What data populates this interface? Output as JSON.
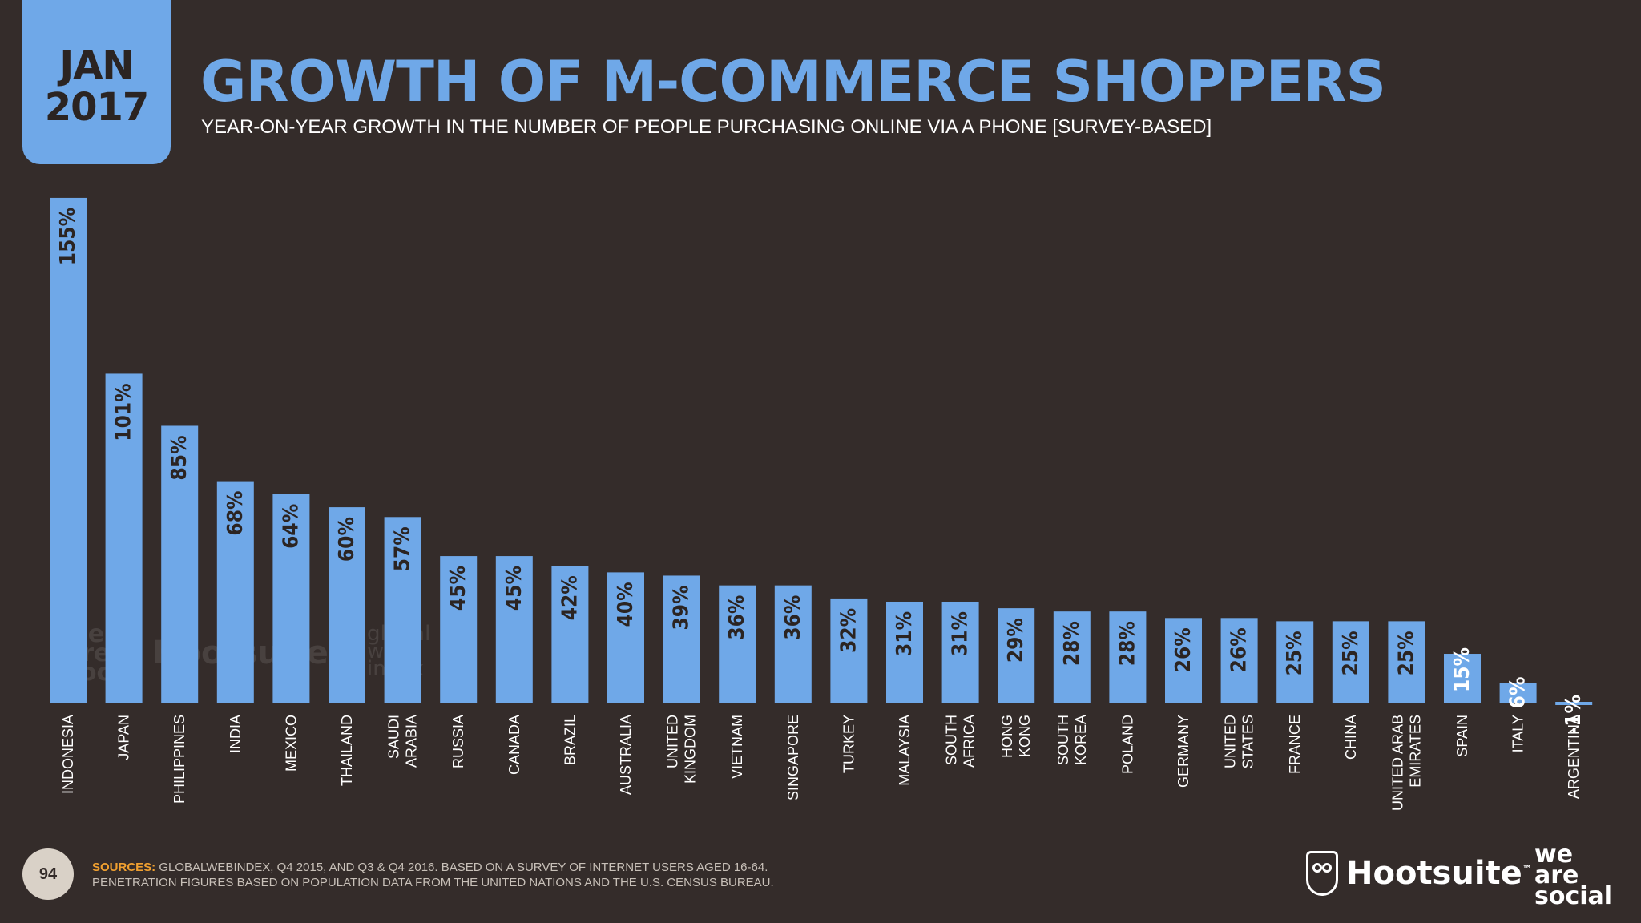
{
  "badge": {
    "month": "JAN",
    "year": "2017"
  },
  "header": {
    "title": "GROWTH OF M-COMMERCE SHOPPERS",
    "subtitle": "YEAR-ON-YEAR GROWTH IN THE NUMBER OF PEOPLE PURCHASING ONLINE VIA A PHONE [SURVEY-BASED]"
  },
  "chart_data": {
    "type": "bar",
    "categories": [
      [
        "INDONESIA"
      ],
      [
        "JAPAN"
      ],
      [
        "PHILIPPINES"
      ],
      [
        "INDIA"
      ],
      [
        "MEXICO"
      ],
      [
        "THAILAND"
      ],
      [
        "SAUDI",
        "ARABIA"
      ],
      [
        "RUSSIA"
      ],
      [
        "CANADA"
      ],
      [
        "BRAZIL"
      ],
      [
        "AUSTRALIA"
      ],
      [
        "UNITED",
        "KINGDOM"
      ],
      [
        "VIETNAM"
      ],
      [
        "SINGAPORE"
      ],
      [
        "TURKEY"
      ],
      [
        "MALAYSIA"
      ],
      [
        "SOUTH",
        "AFRICA"
      ],
      [
        "HONG",
        "KONG"
      ],
      [
        "SOUTH",
        "KOREA"
      ],
      [
        "POLAND"
      ],
      [
        "GERMANY"
      ],
      [
        "UNITED",
        "STATES"
      ],
      [
        "FRANCE"
      ],
      [
        "CHINA"
      ],
      [
        "UNITED ARAB",
        "EMIRATES"
      ],
      [
        "SPAIN"
      ],
      [
        "ITALY"
      ],
      [
        "ARGENTINA"
      ]
    ],
    "values": [
      155,
      101,
      85,
      68,
      64,
      60,
      57,
      45,
      45,
      42,
      40,
      39,
      36,
      36,
      32,
      31,
      31,
      29,
      28,
      28,
      26,
      26,
      25,
      25,
      25,
      15,
      6,
      -1
    ],
    "labels": [
      "155%",
      "101%",
      "85%",
      "68%",
      "64%",
      "60%",
      "57%",
      "45%",
      "45%",
      "42%",
      "40%",
      "39%",
      "36%",
      "36%",
      "32%",
      "31%",
      "31%",
      "29%",
      "28%",
      "28%",
      "26%",
      "26%",
      "25%",
      "25%",
      "25%",
      "15%",
      "6%",
      "-1%"
    ],
    "bar_color": "#6fa8e8",
    "label_color": "#2b2422",
    "outside_label_color": "#ffffff"
  },
  "watermarks": {
    "we_are_social": [
      "we",
      "are",
      "social"
    ],
    "hootsuite": "Hootsuite",
    "global_web_index": [
      "global",
      "web",
      "index"
    ]
  },
  "footer": {
    "page_number": "94",
    "sources_label": "SOURCES:",
    "sources_line1": " GLOBALWEBINDEX, Q4 2015, AND Q3 & Q4 2016. BASED ON A SURVEY OF INTERNET USERS AGED 16-64.",
    "sources_line2": "PENETRATION FIGURES BASED ON POPULATION DATA FROM THE UNITED NATIONS AND THE U.S. CENSUS BUREAU.",
    "hootsuite_logo": "Hootsuite",
    "tm": "™",
    "we_are_social_logo": [
      "we",
      "are",
      "social"
    ]
  }
}
